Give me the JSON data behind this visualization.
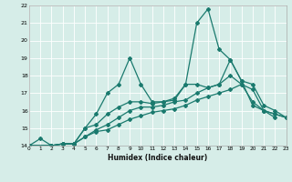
{
  "xlabel": "Humidex (Indice chaleur)",
  "background_color": "#d6ede8",
  "line_color": "#1a7a6e",
  "grid_color": "#ffffff",
  "xmin": 0,
  "xmax": 23,
  "ymin": 14,
  "ymax": 22,
  "yticks": [
    14,
    15,
    16,
    17,
    18,
    19,
    20,
    21,
    22
  ],
  "xticks": [
    0,
    1,
    2,
    3,
    4,
    5,
    6,
    7,
    8,
    9,
    10,
    11,
    12,
    13,
    14,
    15,
    16,
    17,
    18,
    19,
    20,
    21,
    22,
    23
  ],
  "series": [
    {
      "x": [
        0,
        1,
        2,
        3,
        4,
        5,
        6,
        7,
        8,
        9,
        10,
        11,
        12,
        13,
        14,
        15,
        16,
        17,
        18,
        19,
        20,
        21,
        22
      ],
      "y": [
        14,
        14.4,
        14.0,
        14.1,
        14.1,
        15.0,
        15.8,
        17.0,
        17.5,
        19.0,
        17.5,
        16.5,
        16.5,
        16.6,
        17.5,
        21.0,
        21.8,
        19.5,
        18.9,
        17.7,
        16.3,
        16.0,
        15.6
      ]
    },
    {
      "x": [
        0,
        2,
        3,
        4,
        5,
        6,
        7,
        8,
        9,
        10,
        11,
        12,
        13,
        14,
        15,
        16,
        17,
        18,
        19,
        20,
        21,
        22,
        23
      ],
      "y": [
        14.0,
        14.0,
        14.1,
        14.1,
        15.0,
        15.2,
        15.8,
        16.2,
        16.5,
        16.5,
        16.4,
        16.5,
        16.7,
        17.5,
        17.5,
        17.3,
        17.5,
        18.9,
        17.7,
        17.5,
        16.3,
        16.0,
        15.6
      ]
    },
    {
      "x": [
        0,
        2,
        3,
        4,
        5,
        6,
        7,
        8,
        9,
        10,
        11,
        12,
        13,
        14,
        15,
        16,
        17,
        18,
        19,
        20,
        21,
        22,
        23
      ],
      "y": [
        14.0,
        14.0,
        14.1,
        14.1,
        14.5,
        14.9,
        15.2,
        15.6,
        16.0,
        16.2,
        16.2,
        16.3,
        16.5,
        16.6,
        17.0,
        17.3,
        17.5,
        18.0,
        17.5,
        17.2,
        16.0,
        15.8,
        15.6
      ]
    },
    {
      "x": [
        0,
        2,
        3,
        4,
        5,
        6,
        7,
        8,
        9,
        10,
        11,
        12,
        13,
        14,
        15,
        16,
        17,
        18,
        19,
        20,
        21,
        22,
        23
      ],
      "y": [
        14.0,
        14.0,
        14.1,
        14.1,
        14.5,
        14.8,
        14.9,
        15.2,
        15.5,
        15.7,
        15.9,
        16.0,
        16.1,
        16.3,
        16.6,
        16.8,
        17.0,
        17.2,
        17.5,
        16.5,
        16.0,
        15.8,
        15.6
      ]
    }
  ]
}
